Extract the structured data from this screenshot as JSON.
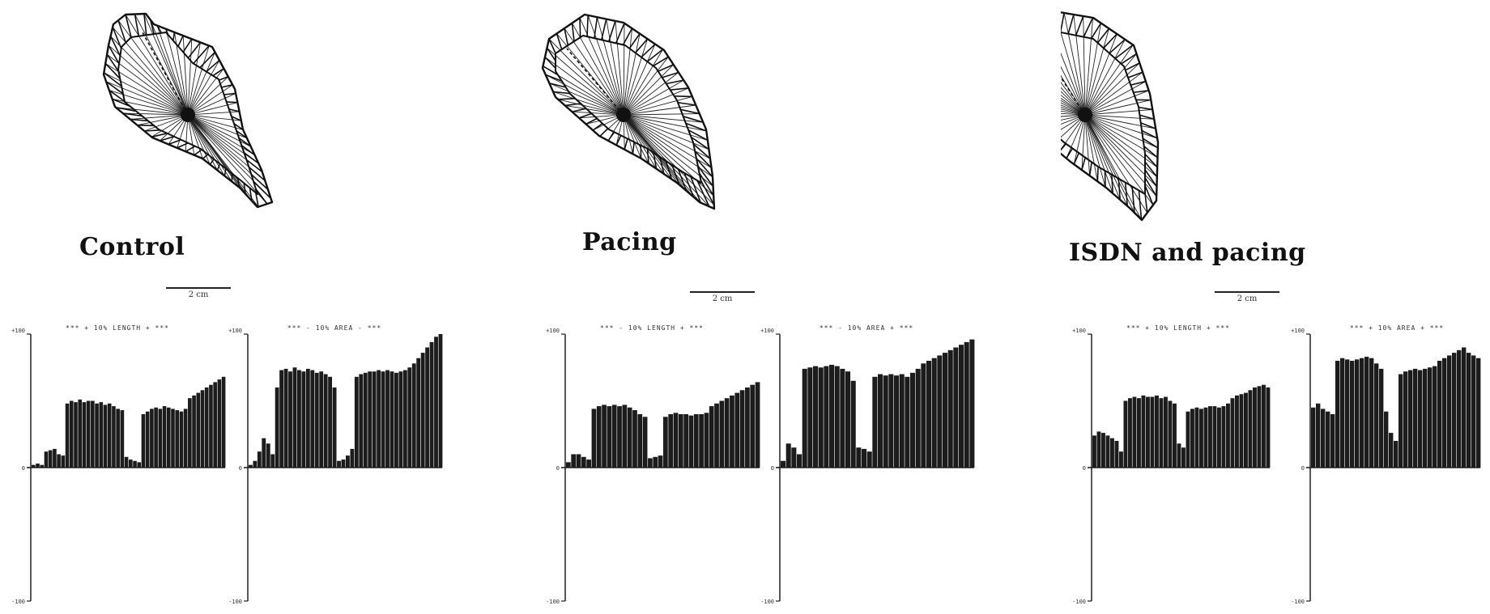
{
  "panels": [
    {
      "label": "Control",
      "scale_label": "2 cm",
      "histograms": [
        {
          "title": "*** + 10% LENGTH + ***",
          "ymax_label": "+100",
          "zero_label": "0",
          "ymin_label": "-100"
        },
        {
          "title": "*** - 10% AREA - ***",
          "ymax_label": "+100",
          "zero_label": "0",
          "ymin_label": "-100"
        }
      ]
    },
    {
      "label": "Pacing",
      "scale_label": "2 cm",
      "histograms": [
        {
          "title": "*** - 10% LENGTH + ***",
          "ymax_label": "+100",
          "zero_label": "0",
          "ymin_label": "-100"
        },
        {
          "title": "*** - 10% AREA + ***",
          "ymax_label": "+100",
          "zero_label": "0",
          "ymin_label": "-100"
        }
      ]
    },
    {
      "label": "ISDN and pacing",
      "scale_label": "2 cm",
      "histograms": [
        {
          "title": "*** + 10% LENGTH + ***",
          "ymax_label": "+100",
          "zero_label": "0",
          "ymin_label": "-100"
        },
        {
          "title": "*** + 10% AREA + ***",
          "ymax_label": "+100",
          "zero_label": "0",
          "ymin_label": "-100"
        }
      ]
    }
  ],
  "chart_data": [
    {
      "type": "bar",
      "title": "*** + 10% LENGTH + ***",
      "ylim": [
        -100,
        100
      ],
      "values": [
        2,
        3,
        2,
        12,
        13,
        14,
        10,
        9,
        48,
        50,
        49,
        51,
        49,
        50,
        50,
        48,
        49,
        47,
        48,
        46,
        44,
        43,
        8,
        6,
        5,
        4,
        40,
        42,
        44,
        45,
        44,
        46,
        45,
        44,
        43,
        42,
        44,
        52,
        54,
        56,
        58,
        60,
        62,
        64,
        66,
        68
      ]
    },
    {
      "type": "bar",
      "title": "*** - 10% AREA - ***",
      "ylim": [
        -100,
        100
      ],
      "values": [
        2,
        5,
        12,
        22,
        18,
        10,
        60,
        73,
        74,
        72,
        75,
        73,
        72,
        74,
        73,
        71,
        72,
        70,
        68,
        60,
        5,
        6,
        9,
        14,
        68,
        70,
        71,
        72,
        72,
        73,
        72,
        73,
        72,
        71,
        72,
        73,
        75,
        78,
        82,
        86,
        90,
        94,
        98,
        100
      ]
    },
    {
      "type": "bar",
      "title": "*** - 10% LENGTH + ***",
      "ylim": [
        -100,
        100
      ],
      "values": [
        4,
        10,
        10,
        8,
        6,
        44,
        46,
        47,
        46,
        47,
        46,
        47,
        45,
        43,
        40,
        38,
        7,
        8,
        9,
        38,
        40,
        41,
        40,
        40,
        39,
        40,
        40,
        41,
        46,
        48,
        50,
        52,
        54,
        56,
        58,
        60,
        62,
        64
      ]
    },
    {
      "type": "bar",
      "title": "*** - 10% AREA + ***",
      "ylim": [
        -100,
        100
      ],
      "values": [
        5,
        18,
        15,
        10,
        74,
        75,
        76,
        75,
        76,
        77,
        76,
        74,
        72,
        65,
        15,
        14,
        12,
        68,
        70,
        69,
        70,
        69,
        70,
        68,
        71,
        74,
        78,
        80,
        82,
        84,
        86,
        88,
        90,
        92,
        94,
        96
      ]
    },
    {
      "type": "bar",
      "title": "*** + 10% LENGTH + ***",
      "ylim": [
        -100,
        100
      ],
      "values": [
        24,
        27,
        26,
        24,
        22,
        20,
        12,
        50,
        52,
        53,
        52,
        54,
        53,
        53,
        54,
        52,
        53,
        50,
        48,
        18,
        15,
        42,
        44,
        45,
        44,
        45,
        46,
        46,
        45,
        46,
        48,
        52,
        54,
        55,
        56,
        58,
        60,
        61,
        62,
        60
      ]
    },
    {
      "type": "bar",
      "title": "*** + 10% AREA + ***",
      "ylim": [
        -100,
        100
      ],
      "values": [
        45,
        48,
        44,
        42,
        40,
        80,
        82,
        81,
        80,
        81,
        82,
        83,
        82,
        78,
        74,
        42,
        26,
        20,
        70,
        72,
        73,
        74,
        73,
        74,
        75,
        76,
        80,
        82,
        84,
        86,
        88,
        90,
        86,
        84,
        82
      ]
    }
  ]
}
